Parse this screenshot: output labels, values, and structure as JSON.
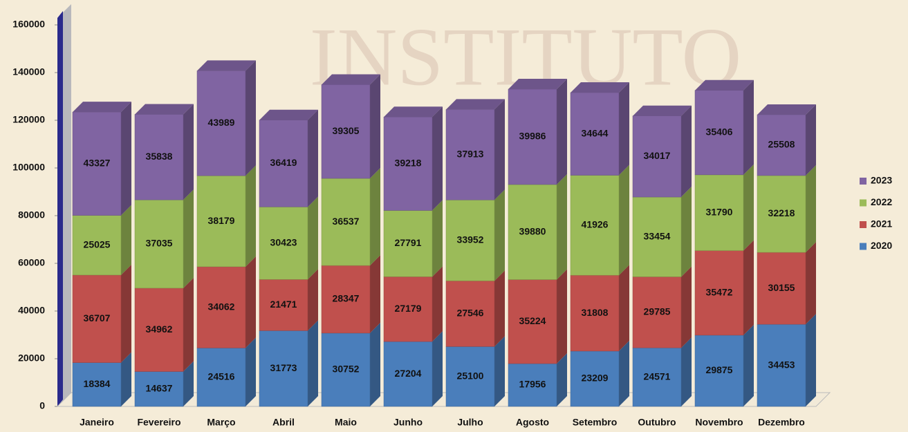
{
  "chart_data": {
    "type": "stacked_bar_3d",
    "watermark": "INSTITUTO",
    "categories": [
      "Janeiro",
      "Fevereiro",
      "Março",
      "Abril",
      "Maio",
      "Junho",
      "Julho",
      "Agosto",
      "Setembro",
      "Outubro",
      "Novembro",
      "Dezembro"
    ],
    "series": [
      {
        "name": "2020",
        "color": "#4a7ebb",
        "values": [
          18384,
          14637,
          24516,
          31773,
          30752,
          27204,
          25100,
          17956,
          23209,
          24571,
          29875,
          34453
        ]
      },
      {
        "name": "2021",
        "color": "#c0504d",
        "values": [
          36707,
          34962,
          34062,
          21471,
          28347,
          27179,
          27546,
          35224,
          31808,
          29785,
          35472,
          30155
        ]
      },
      {
        "name": "2022",
        "color": "#9bbb59",
        "values": [
          25025,
          37035,
          38179,
          30423,
          36537,
          27791,
          33952,
          39880,
          41926,
          33454,
          31790,
          32218
        ]
      },
      {
        "name": "2023",
        "color": "#8064a2",
        "values": [
          43327,
          35838,
          43989,
          36419,
          39305,
          39218,
          37913,
          39986,
          34644,
          34017,
          35406,
          25508
        ]
      }
    ],
    "ylim": [
      0,
      160000
    ],
    "yticks": [
      0,
      20000,
      40000,
      60000,
      80000,
      100000,
      120000,
      140000,
      160000
    ],
    "legend": "right"
  }
}
